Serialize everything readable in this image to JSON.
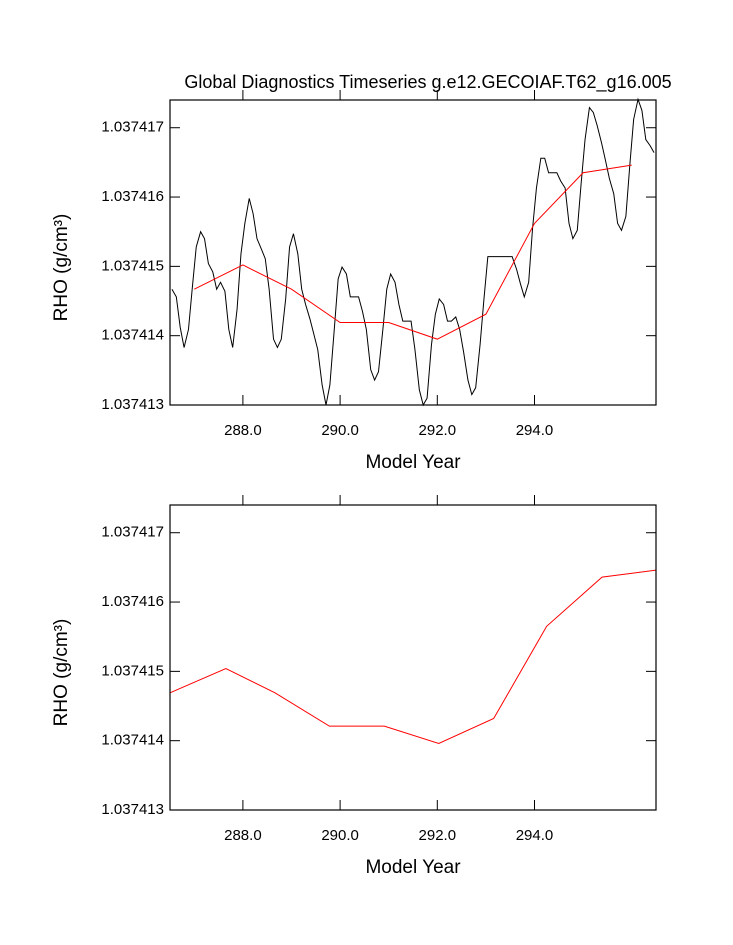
{
  "chart_data": [
    {
      "type": "line",
      "title": "Global Diagnostics Timeseries g.e12.GECOIAF.T62_g16.005",
      "x_label": "Model Year",
      "y_label": "RHO (g/cm³)",
      "xlim": [
        286.5,
        296.5
      ],
      "ylim": [
        1.037413,
        1.0374174
      ],
      "xticks": [
        {
          "value": 288,
          "label": "288.0"
        },
        {
          "value": 290,
          "label": "290.0"
        },
        {
          "value": 292,
          "label": "292.0"
        },
        {
          "value": 294,
          "label": "294.0"
        }
      ],
      "yticks": [
        1.037413,
        1.037414,
        1.037415,
        1.037416,
        1.037417
      ],
      "series": [
        {
          "color": "#000000",
          "x": [
            286.54,
            286.63,
            286.71,
            286.79,
            286.88,
            286.96,
            287.04,
            287.13,
            287.21,
            287.29,
            287.38,
            287.46,
            287.54,
            287.63,
            287.71,
            287.79,
            287.88,
            287.96,
            288.04,
            288.13,
            288.21,
            288.29,
            288.38,
            288.46,
            288.54,
            288.63,
            288.71,
            288.79,
            288.88,
            288.96,
            289.04,
            289.13,
            289.21,
            289.29,
            289.38,
            289.46,
            289.54,
            289.63,
            289.71,
            289.79,
            289.88,
            289.96,
            290.04,
            290.13,
            290.21,
            290.29,
            290.38,
            290.46,
            290.54,
            290.63,
            290.71,
            290.79,
            290.88,
            290.96,
            291.04,
            291.13,
            291.21,
            291.29,
            291.38,
            291.46,
            291.54,
            291.63,
            291.71,
            291.79,
            291.88,
            291.96,
            292.04,
            292.13,
            292.21,
            292.29,
            292.38,
            292.46,
            292.54,
            292.63,
            292.71,
            292.79,
            292.88,
            292.96,
            293.04,
            293.13,
            293.21,
            293.29,
            293.38,
            293.46,
            293.54,
            293.63,
            293.71,
            293.79,
            293.88,
            293.96,
            294.04,
            294.13,
            294.21,
            294.29,
            294.38,
            294.46,
            294.54,
            294.63,
            294.71,
            294.79,
            294.88,
            294.96,
            295.04,
            295.13,
            295.21,
            295.29,
            295.38,
            295.46,
            295.54,
            295.63,
            295.71,
            295.79,
            295.88,
            295.96,
            296.04,
            296.13,
            296.21,
            296.29,
            296.38,
            296.46
          ],
          "values": [
            1.03741467,
            1.03741456,
            1.03741412,
            1.03741383,
            1.03741409,
            1.0374147,
            1.03741528,
            1.0374155,
            1.0374154,
            1.03741504,
            1.03741492,
            1.03741467,
            1.03741477,
            1.03741464,
            1.03741409,
            1.03741383,
            1.03741438,
            1.03741518,
            1.03741562,
            1.03741598,
            1.03741576,
            1.0374154,
            1.03741525,
            1.03741511,
            1.03741467,
            1.03741395,
            1.03741383,
            1.03741395,
            1.03741453,
            1.03741528,
            1.03741547,
            1.03741518,
            1.03741467,
            1.03741445,
            1.03741424,
            1.03741402,
            1.0374138,
            1.03741329,
            1.037413,
            1.03741329,
            1.03741409,
            1.03741482,
            1.03741499,
            1.03741489,
            1.03741456,
            1.03741456,
            1.03741456,
            1.03741435,
            1.03741409,
            1.03741351,
            1.03741336,
            1.03741348,
            1.03741409,
            1.03741467,
            1.03741489,
            1.03741477,
            1.03741445,
            1.03741421,
            1.03741421,
            1.03741421,
            1.0374138,
            1.03741322,
            1.037413,
            1.0374131,
            1.03741387,
            1.03741431,
            1.03741453,
            1.03741445,
            1.03741421,
            1.03741421,
            1.03741427,
            1.03741409,
            1.03741377,
            1.03741336,
            1.03741315,
            1.03741325,
            1.03741387,
            1.03741453,
            1.03741514,
            1.03741514,
            1.03741514,
            1.03741514,
            1.03741514,
            1.03741514,
            1.03741514,
            1.03741496,
            1.03741475,
            1.03741456,
            1.03741477,
            1.03741555,
            1.03741613,
            1.03741656,
            1.03741656,
            1.03741635,
            1.03741635,
            1.03741635,
            1.03741623,
            1.03741613,
            1.03741562,
            1.0374154,
            1.03741552,
            1.0374162,
            1.03741683,
            1.03741729,
            1.03741722,
            1.03741703,
            1.03741678,
            1.03741653,
            1.03741627,
            1.03741605,
            1.03741562,
            1.03741552,
            1.03741572,
            1.03741645,
            1.03741712,
            1.03741741,
            1.03741725,
            1.03741683,
            1.03741674,
            1.03741664
          ]
        },
        {
          "color": "#ff0000",
          "x": [
            287,
            288,
            289,
            290,
            291,
            292,
            293,
            294,
            295,
            296
          ],
          "values": [
            1.03741467,
            1.03741502,
            1.03741467,
            1.03741419,
            1.03741419,
            1.03741395,
            1.03741431,
            1.03741562,
            1.03741635,
            1.03741646
          ]
        }
      ]
    },
    {
      "type": "line",
      "x_label": "Model Year",
      "y_label": "RHO (g/cm³)",
      "xlim": [
        286.5,
        296.5
      ],
      "ylim": [
        1.037413,
        1.0374174
      ],
      "xticks": [
        {
          "value": 288,
          "label": "288.0"
        },
        {
          "value": 290,
          "label": "290.0"
        },
        {
          "value": 292,
          "label": "292.0"
        },
        {
          "value": 294,
          "label": "294.0"
        }
      ],
      "yticks": [
        1.037413,
        1.037414,
        1.037415,
        1.037416,
        1.037417
      ],
      "series": [
        {
          "color": "#ff0000",
          "x": [
            286.5,
            287.65,
            288.66,
            289.78,
            290.91,
            292.03,
            293.16,
            294.25,
            295.39,
            296.5
          ],
          "values": [
            1.03741469,
            1.03741504,
            1.03741469,
            1.03741421,
            1.03741421,
            1.03741396,
            1.03741432,
            1.03741565,
            1.03741636,
            1.03741646
          ]
        }
      ]
    }
  ]
}
